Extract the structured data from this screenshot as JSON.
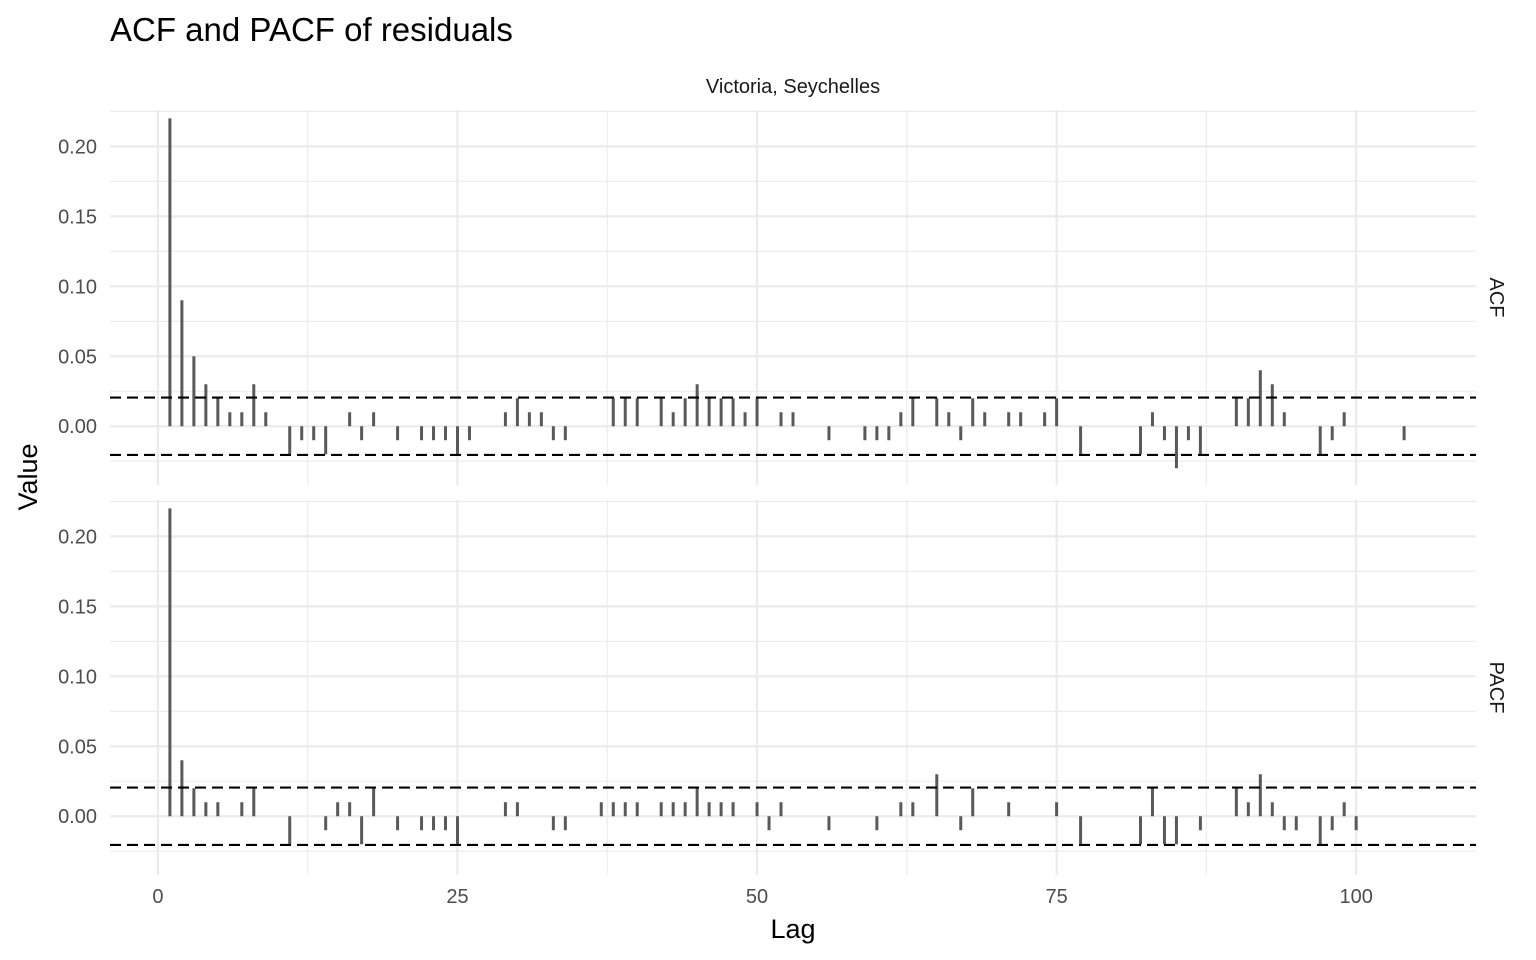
{
  "chart_data": {
    "type": "bar",
    "title": "ACF and PACF of residuals",
    "subtitle": "Victoria, Seychelles",
    "xlabel": "Lag",
    "ylabel": "Value",
    "xlim": [
      -4,
      110
    ],
    "x_ticks": [
      0,
      25,
      50,
      75,
      100
    ],
    "x_tick_labels": [
      "0",
      "25",
      "50",
      "75",
      "100"
    ],
    "ylim": [
      -0.042,
      0.226
    ],
    "y_ticks": [
      0.0,
      0.05,
      0.1,
      0.15,
      0.2
    ],
    "y_tick_labels": [
      "0.00",
      "0.05",
      "0.10",
      "0.15",
      "0.20"
    ],
    "grid": true,
    "confidence_bound": 0.0205,
    "panels": [
      {
        "name": "ACF",
        "points": [
          [
            1,
            0.22
          ],
          [
            2,
            0.09
          ],
          [
            3,
            0.05
          ],
          [
            4,
            0.03
          ],
          [
            5,
            0.02
          ],
          [
            6,
            0.01
          ],
          [
            7,
            0.01
          ],
          [
            8,
            0.03
          ],
          [
            9,
            0.01
          ],
          [
            11,
            -0.02
          ],
          [
            12,
            -0.01
          ],
          [
            13,
            -0.01
          ],
          [
            14,
            -0.02
          ],
          [
            16,
            0.01
          ],
          [
            17,
            -0.01
          ],
          [
            18,
            0.01
          ],
          [
            20,
            -0.01
          ],
          [
            22,
            -0.01
          ],
          [
            23,
            -0.01
          ],
          [
            24,
            -0.01
          ],
          [
            25,
            -0.02
          ],
          [
            26,
            -0.01
          ],
          [
            29,
            0.01
          ],
          [
            30,
            0.02
          ],
          [
            31,
            0.01
          ],
          [
            32,
            0.01
          ],
          [
            33,
            -0.01
          ],
          [
            34,
            -0.01
          ],
          [
            38,
            0.02
          ],
          [
            39,
            0.02
          ],
          [
            40,
            0.02
          ],
          [
            42,
            0.02
          ],
          [
            43,
            0.01
          ],
          [
            44,
            0.02
          ],
          [
            45,
            0.03
          ],
          [
            46,
            0.02
          ],
          [
            47,
            0.02
          ],
          [
            48,
            0.02
          ],
          [
            49,
            0.01
          ],
          [
            50,
            0.02
          ],
          [
            52,
            0.01
          ],
          [
            53,
            0.01
          ],
          [
            56,
            -0.01
          ],
          [
            59,
            -0.01
          ],
          [
            60,
            -0.01
          ],
          [
            61,
            -0.01
          ],
          [
            62,
            0.01
          ],
          [
            63,
            0.02
          ],
          [
            65,
            0.02
          ],
          [
            66,
            0.01
          ],
          [
            67,
            -0.01
          ],
          [
            68,
            0.02
          ],
          [
            69,
            0.01
          ],
          [
            71,
            0.01
          ],
          [
            72,
            0.01
          ],
          [
            74,
            0.01
          ],
          [
            75,
            0.02
          ],
          [
            77,
            -0.02
          ],
          [
            82,
            -0.02
          ],
          [
            83,
            0.01
          ],
          [
            84,
            -0.01
          ],
          [
            85,
            -0.03
          ],
          [
            86,
            -0.01
          ],
          [
            87,
            -0.02
          ],
          [
            90,
            0.02
          ],
          [
            91,
            0.02
          ],
          [
            92,
            0.04
          ],
          [
            93,
            0.03
          ],
          [
            94,
            0.01
          ],
          [
            97,
            -0.02
          ],
          [
            98,
            -0.01
          ],
          [
            99,
            0.01
          ],
          [
            104,
            -0.01
          ]
        ]
      },
      {
        "name": "PACF",
        "points": [
          [
            1,
            0.22
          ],
          [
            2,
            0.04
          ],
          [
            3,
            0.02
          ],
          [
            4,
            0.01
          ],
          [
            5,
            0.01
          ],
          [
            7,
            0.01
          ],
          [
            8,
            0.02
          ],
          [
            11,
            -0.02
          ],
          [
            14,
            -0.01
          ],
          [
            15,
            0.01
          ],
          [
            16,
            0.01
          ],
          [
            17,
            -0.02
          ],
          [
            18,
            0.02
          ],
          [
            20,
            -0.01
          ],
          [
            22,
            -0.01
          ],
          [
            23,
            -0.01
          ],
          [
            24,
            -0.01
          ],
          [
            25,
            -0.02
          ],
          [
            29,
            0.01
          ],
          [
            30,
            0.01
          ],
          [
            33,
            -0.01
          ],
          [
            34,
            -0.01
          ],
          [
            37,
            0.01
          ],
          [
            38,
            0.01
          ],
          [
            39,
            0.01
          ],
          [
            40,
            0.01
          ],
          [
            42,
            0.01
          ],
          [
            43,
            0.01
          ],
          [
            44,
            0.01
          ],
          [
            45,
            0.02
          ],
          [
            46,
            0.01
          ],
          [
            47,
            0.01
          ],
          [
            48,
            0.01
          ],
          [
            50,
            0.01
          ],
          [
            51,
            -0.01
          ],
          [
            52,
            0.01
          ],
          [
            56,
            -0.01
          ],
          [
            60,
            -0.01
          ],
          [
            62,
            0.01
          ],
          [
            63,
            0.01
          ],
          [
            65,
            0.03
          ],
          [
            67,
            -0.01
          ],
          [
            68,
            0.02
          ],
          [
            71,
            0.01
          ],
          [
            75,
            0.01
          ],
          [
            77,
            -0.02
          ],
          [
            82,
            -0.02
          ],
          [
            83,
            0.02
          ],
          [
            84,
            -0.02
          ],
          [
            85,
            -0.02
          ],
          [
            87,
            -0.01
          ],
          [
            90,
            0.02
          ],
          [
            91,
            0.01
          ],
          [
            92,
            0.03
          ],
          [
            93,
            0.01
          ],
          [
            94,
            -0.01
          ],
          [
            95,
            -0.01
          ],
          [
            97,
            -0.02
          ],
          [
            98,
            -0.01
          ],
          [
            99,
            0.01
          ],
          [
            100,
            -0.01
          ]
        ]
      }
    ]
  }
}
